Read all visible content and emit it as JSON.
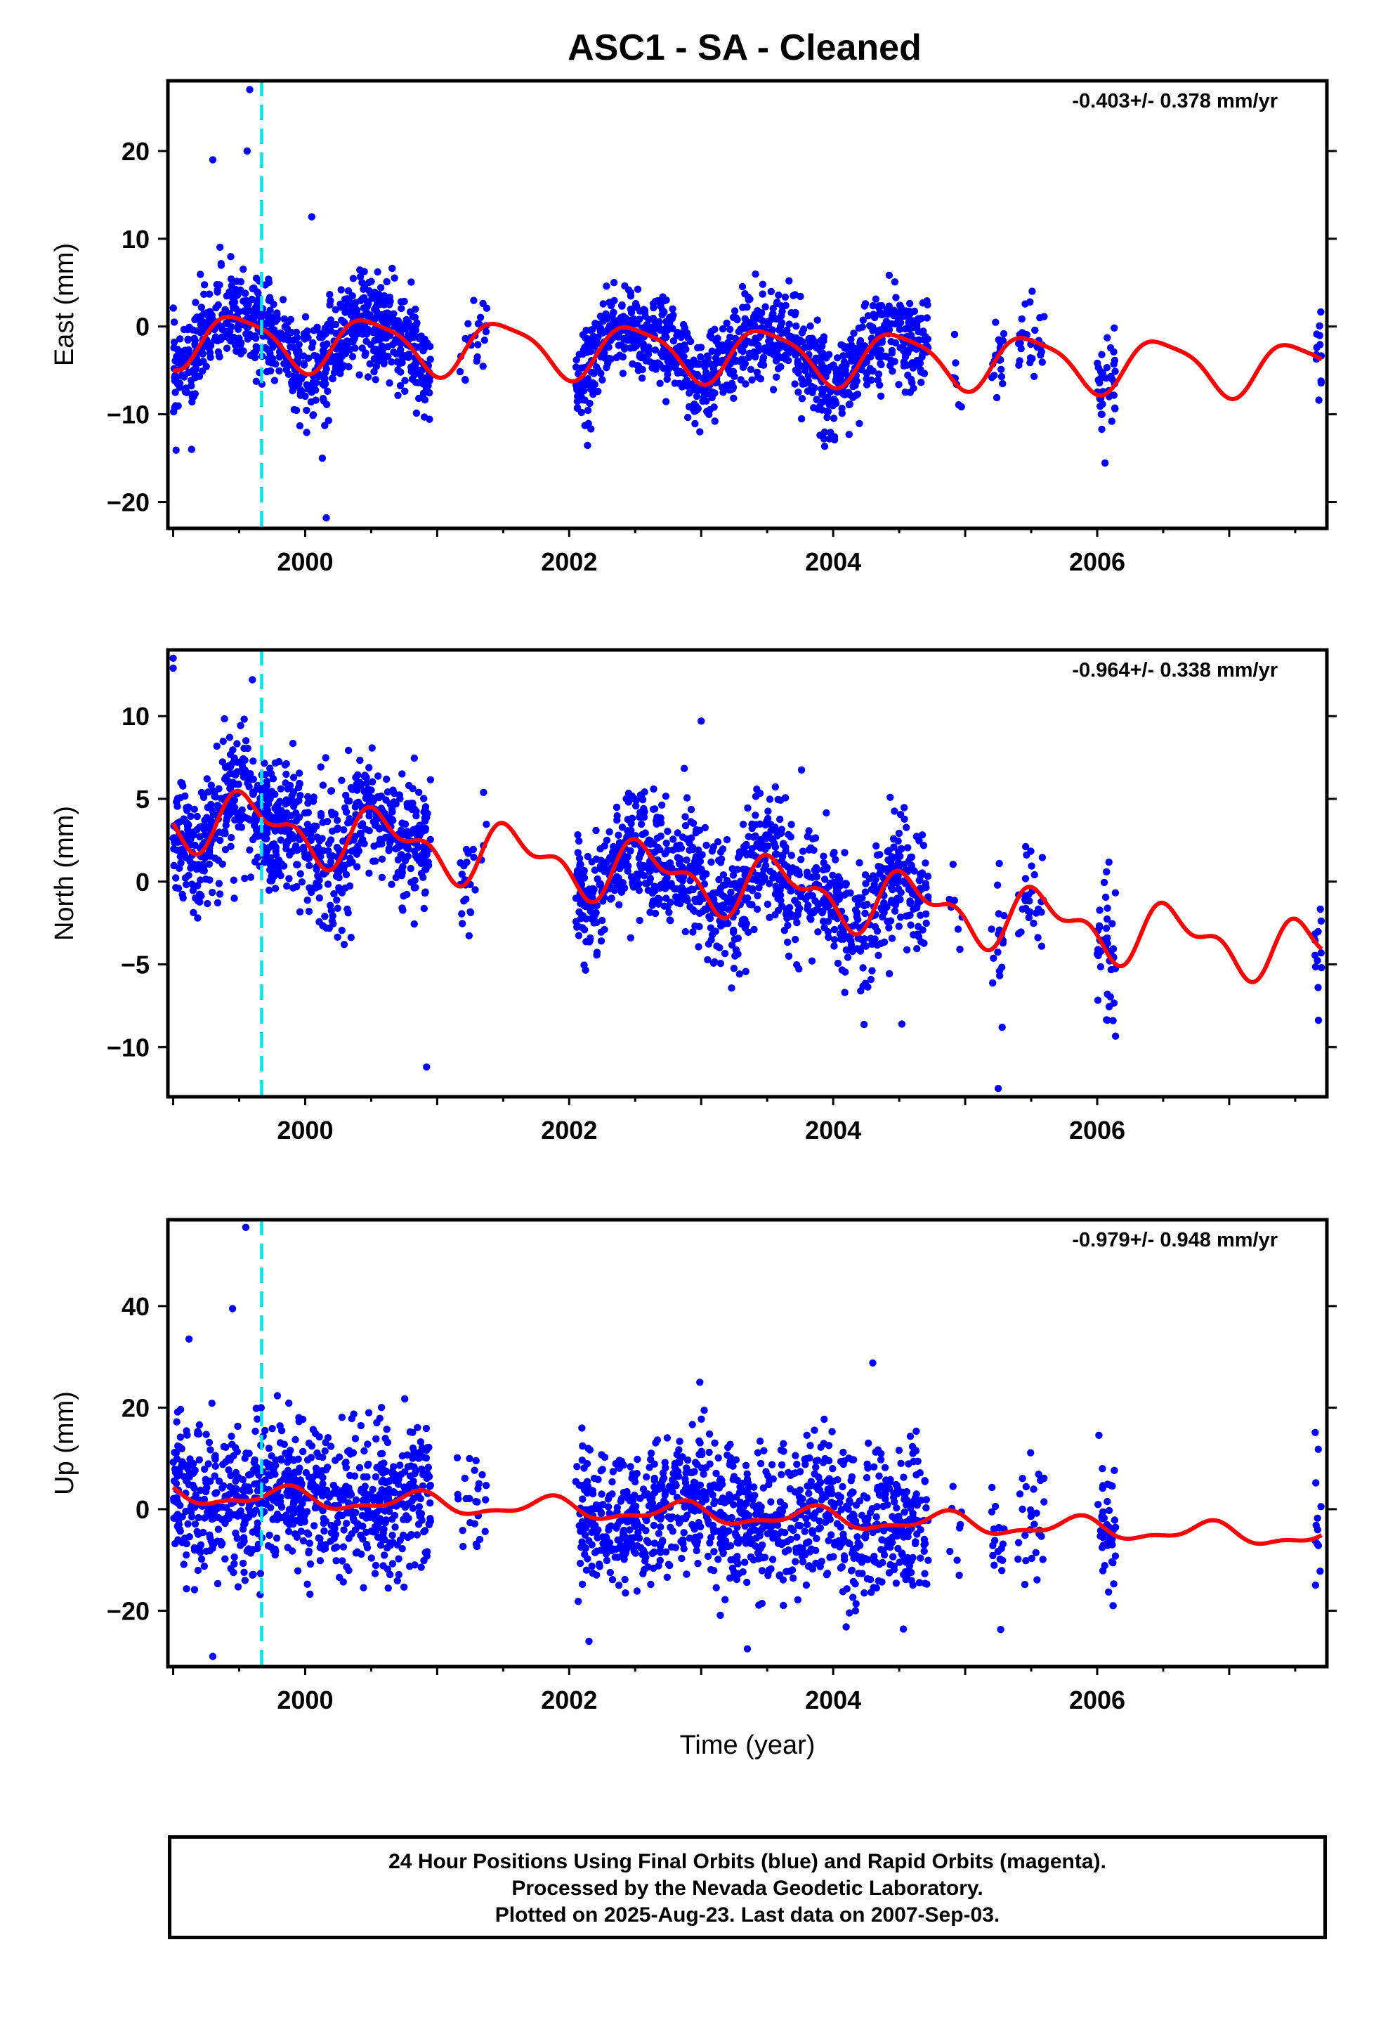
{
  "title": "ASC1  - SA - Cleaned",
  "colors": {
    "data": "#0000ff",
    "model": "#ff0000",
    "event_line": "#00e5ee",
    "frame": "#000000"
  },
  "xlabel": "Time (year)",
  "x_tick_labels": [
    "2000",
    "2002",
    "2004",
    "2006"
  ],
  "chart_data": [
    {
      "type": "scatter",
      "ylabel": "East (mm)",
      "rate_label": "-0.403+/- 0.378 mm/yr",
      "xlim": [
        1998.96,
        2007.74
      ],
      "ylim": [
        -23,
        28
      ],
      "y_ticks": [
        20,
        10,
        0,
        -10,
        -20
      ],
      "event_line_x": 1999.67,
      "model": {
        "rate": -0.403,
        "offset": -1.4,
        "ann_amp": 3.0,
        "ann_phase": 1999.5,
        "semi_amp": 0.7,
        "semi_phase": 1999.3
      },
      "scatter_sd": 2.6,
      "highlight_points": [
        [
          1999.58,
          27
        ],
        [
          1999.56,
          20
        ],
        [
          1999.3,
          19
        ],
        [
          2000.05,
          12.5
        ],
        [
          2000.16,
          -21.8
        ],
        [
          2000.13,
          -15
        ],
        [
          1999.14,
          -14
        ],
        [
          2002.99,
          -12
        ],
        [
          2003.93,
          -12.8
        ]
      ]
    },
    {
      "type": "scatter",
      "ylabel": "North (mm)",
      "rate_label": "-0.964+/- 0.338 mm/yr",
      "xlim": [
        1998.96,
        2007.74
      ],
      "ylim": [
        -13,
        14
      ],
      "y_ticks": [
        10,
        5,
        0,
        -5,
        -10
      ],
      "event_line_x": 1999.67,
      "model": {
        "rate": -0.964,
        "offset": 4.0,
        "ann_amp": 1.5,
        "ann_phase": 1999.6,
        "semi_amp": 0.9,
        "semi_phase": 1999.45
      },
      "scatter_sd": 1.9,
      "highlight_points": [
        [
          1999.0,
          13.5
        ],
        [
          1999.0,
          12.9
        ],
        [
          1999.6,
          12.2
        ],
        [
          2000.92,
          -11.2
        ],
        [
          2003.0,
          9.7
        ],
        [
          2005.25,
          -12.5
        ],
        [
          2004.52,
          -8.6
        ],
        [
          2005.28,
          -8.8
        ],
        [
          2006.12,
          -8.4
        ]
      ]
    },
    {
      "type": "scatter",
      "ylabel": "Up (mm)",
      "rate_label": "-0.979+/- 0.948 mm/yr",
      "xlim": [
        1998.96,
        2007.74
      ],
      "ylim": [
        -31,
        57
      ],
      "y_ticks": [
        40,
        20,
        0,
        -20
      ],
      "event_line_x": 1999.67,
      "model": {
        "rate": -0.979,
        "offset": 3.0,
        "ann_amp": 1.8,
        "ann_phase": 1999.85,
        "semi_amp": 0.8,
        "semi_phase": 1999.4
      },
      "scatter_sd": 7.0,
      "highlight_points": [
        [
          1999.55,
          55.5
        ],
        [
          1999.45,
          39.5
        ],
        [
          1999.12,
          33.5
        ],
        [
          1999.3,
          -29
        ],
        [
          2002.15,
          -26
        ],
        [
          2003.35,
          -27.5
        ],
        [
          2004.3,
          28.8
        ],
        [
          2002.99,
          25
        ],
        [
          2006.12,
          -19
        ]
      ]
    }
  ],
  "data_spans": [
    [
      1999.0,
      2000.95,
      850
    ],
    [
      2001.15,
      2001.38,
      25
    ],
    [
      2002.05,
      2004.72,
      1050
    ],
    [
      2004.88,
      2004.98,
      8
    ],
    [
      2005.2,
      2005.3,
      18
    ],
    [
      2005.4,
      2005.6,
      30
    ],
    [
      2006.0,
      2006.14,
      40
    ],
    [
      2007.65,
      2007.7,
      12
    ]
  ],
  "footer": {
    "line1": "24 Hour Positions Using Final Orbits (blue) and Rapid Orbits (magenta).",
    "line2": "Processed by the Nevada Geodetic Laboratory.",
    "line3": "Plotted on 2025-Aug-23. Last data on 2007-Sep-03."
  }
}
